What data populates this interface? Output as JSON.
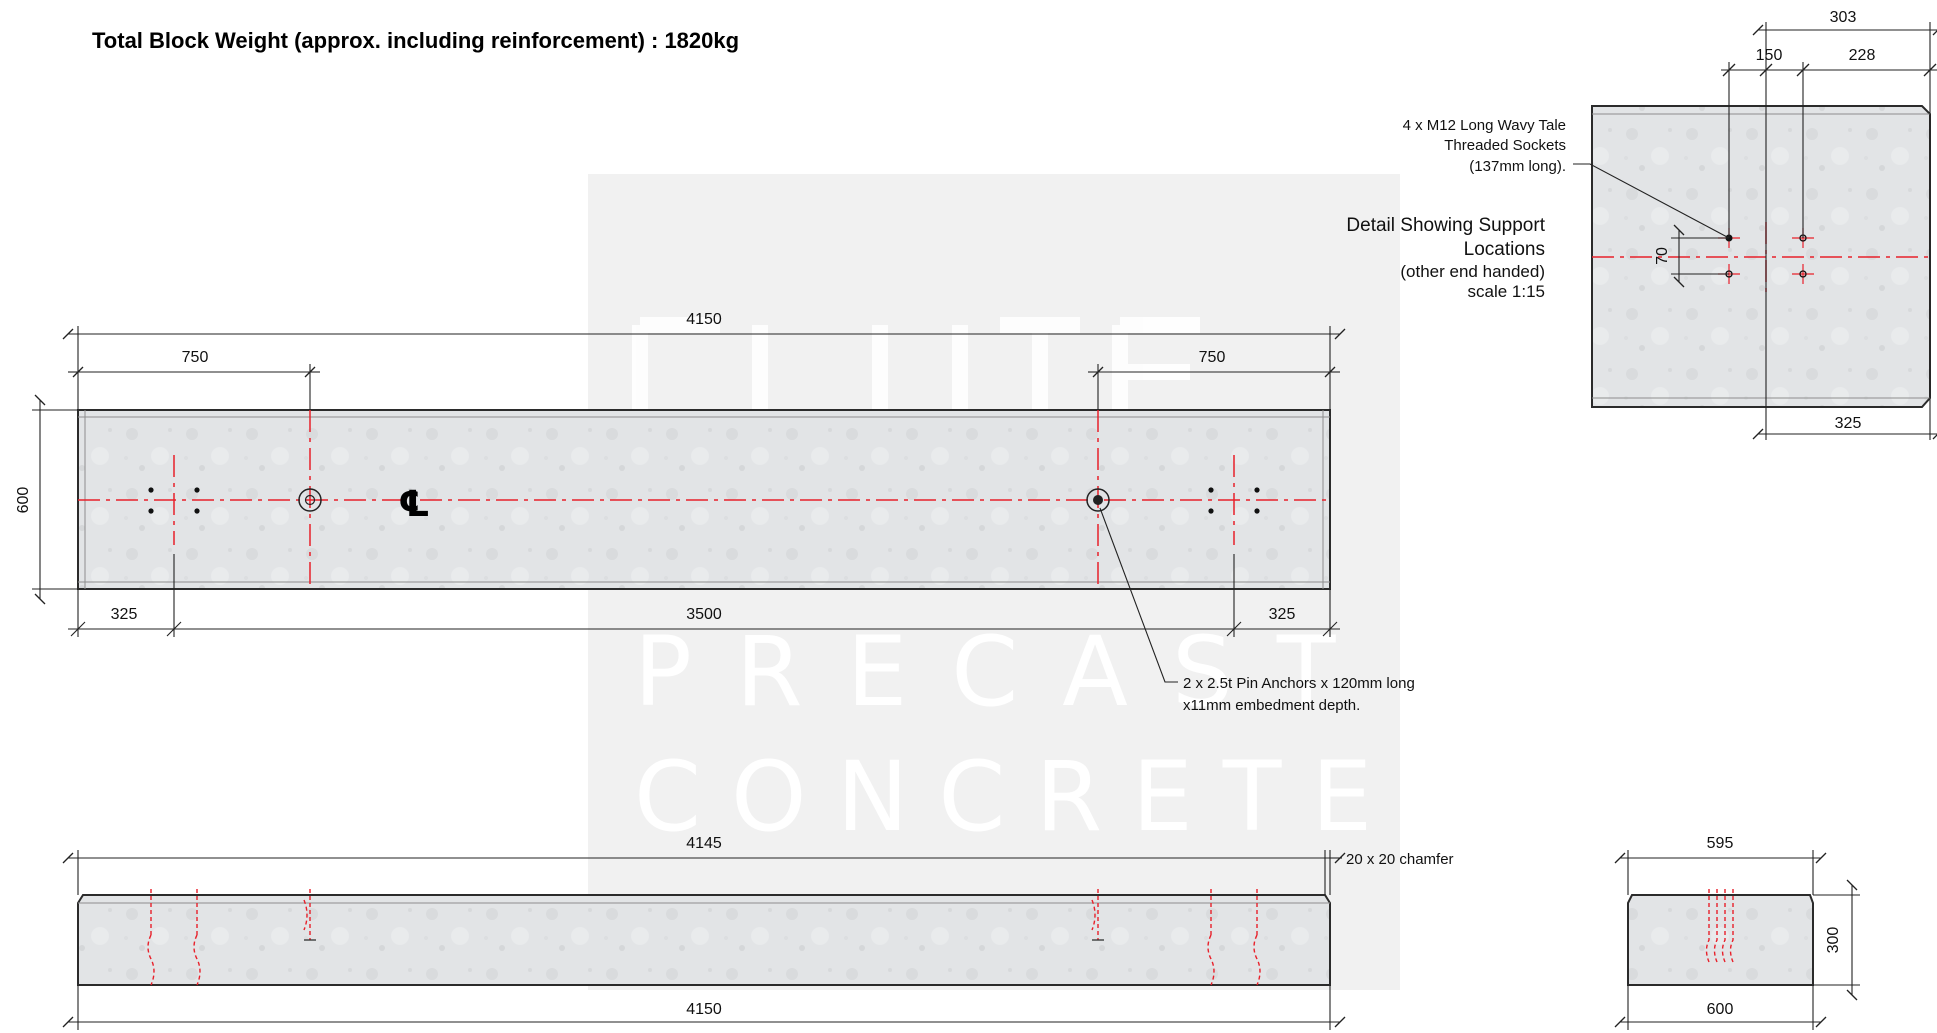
{
  "heading": "Total Block Weight (approx. including reinforcement) : 1820kg",
  "watermark": {
    "line1": "PRECAST",
    "line2": "CONCRETE"
  },
  "plan_view": {
    "overall_length": "4150",
    "end_offset_left": "750",
    "end_offset_right": "750",
    "height": "600",
    "support_left": "325",
    "anchor_spacing": "3500",
    "support_right": "325",
    "centerline_symbol": "℄"
  },
  "anchor_note": {
    "line1": "2 x 2.5t Pin Anchors x 120mm long",
    "line2": "x11mm embedment depth."
  },
  "socket_note": {
    "line1": "4 x M12 Long Wavy Tale",
    "line2": "Threaded Sockets",
    "line3": "(137mm long)."
  },
  "detail_title": {
    "line1": "Detail Showing Support",
    "line2": "Locations",
    "line3": "(other end handed)",
    "line4": "scale 1:15"
  },
  "detail_view": {
    "dim_top": "303",
    "dim_left": "150",
    "dim_right": "228",
    "dim_vertical": "70",
    "dim_bottom": "325"
  },
  "elevation_view": {
    "top_length": "4145",
    "bottom_length": "4150",
    "chamfer_note": "20 x 20 chamfer"
  },
  "end_view": {
    "width_top": "595",
    "width_bottom": "600",
    "height": "300"
  },
  "colors": {
    "concrete": "#e3e5e7",
    "centerline": "#e8202a",
    "outline": "#2b2b2b",
    "watermark_panel": "#f1f1f1"
  }
}
